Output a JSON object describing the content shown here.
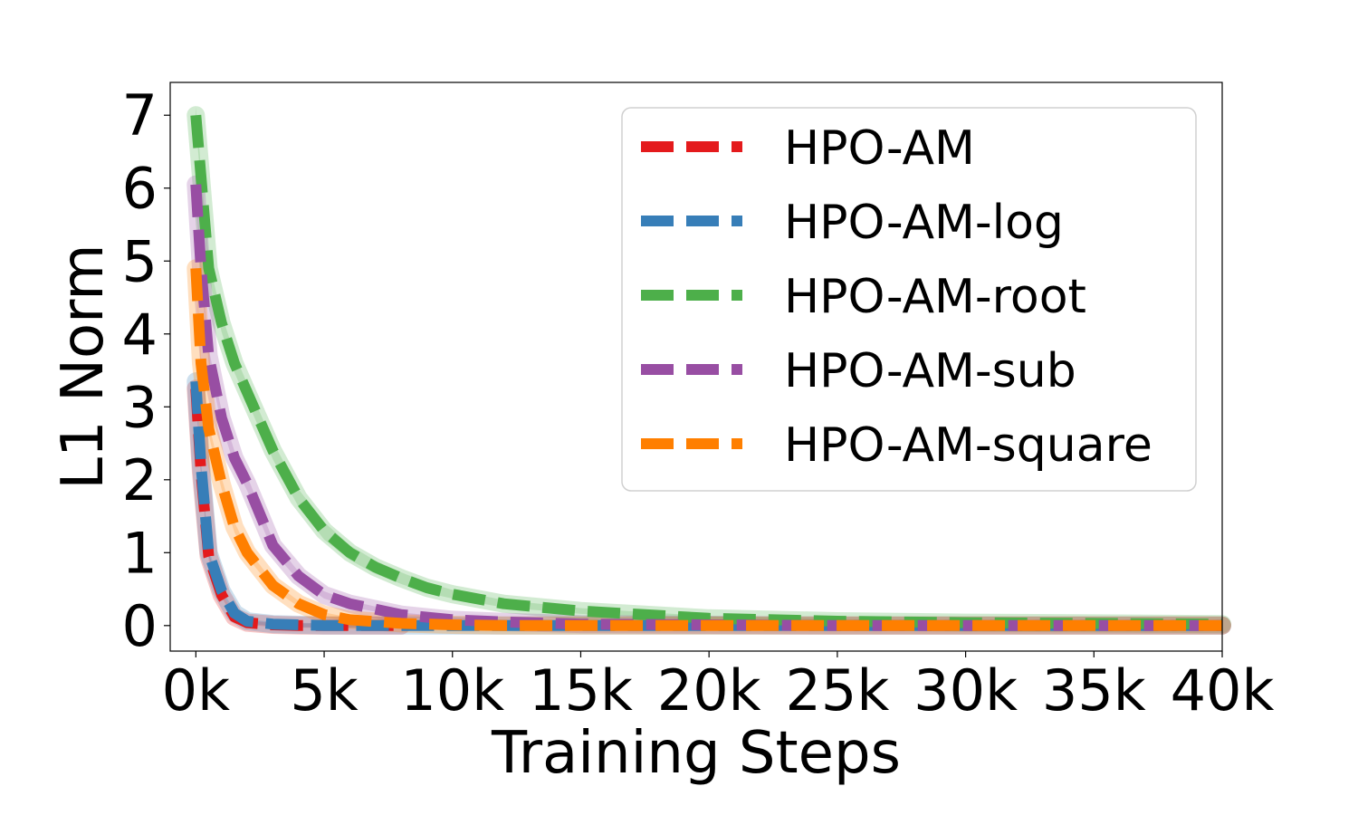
{
  "chart_data": {
    "type": "line",
    "title": "",
    "xlabel": "Training Steps",
    "ylabel": "L1 Norm",
    "xlim": [
      -1000,
      40000
    ],
    "ylim": [
      -0.35,
      7.45
    ],
    "grid": false,
    "legend_position": "top-right",
    "x_ticks": [
      {
        "value": 0,
        "label": "0k"
      },
      {
        "value": 5000,
        "label": "5k"
      },
      {
        "value": 10000,
        "label": "10k"
      },
      {
        "value": 15000,
        "label": "15k"
      },
      {
        "value": 20000,
        "label": "20k"
      },
      {
        "value": 25000,
        "label": "25k"
      },
      {
        "value": 30000,
        "label": "30k"
      },
      {
        "value": 35000,
        "label": "35k"
      },
      {
        "value": 40000,
        "label": "40k"
      }
    ],
    "y_ticks": [
      {
        "value": 0,
        "label": "0"
      },
      {
        "value": 1,
        "label": "1"
      },
      {
        "value": 2,
        "label": "2"
      },
      {
        "value": 3,
        "label": "3"
      },
      {
        "value": 4,
        "label": "4"
      },
      {
        "value": 5,
        "label": "5"
      },
      {
        "value": 6,
        "label": "6"
      },
      {
        "value": 7,
        "label": "7"
      }
    ],
    "series": [
      {
        "name": "HPO-AM",
        "color": "#e41a1c",
        "x": [
          0,
          200,
          500,
          1000,
          1500,
          2000,
          3000,
          4000,
          6000,
          8000
        ],
        "y": [
          3.25,
          2.1,
          0.95,
          0.42,
          0.12,
          0.04,
          0.01,
          0.0,
          0.0,
          0.0
        ],
        "band": [
          0.08,
          0.06,
          0.05,
          0.03,
          0.02,
          0.01,
          0.0,
          0.0,
          0.0,
          0.0
        ]
      },
      {
        "name": "HPO-AM-log",
        "color": "#377eb8",
        "x": [
          0,
          200,
          500,
          1000,
          1500,
          2000,
          3000,
          4000,
          5000,
          6000,
          8000,
          10000,
          15000,
          20000,
          25000,
          30000,
          35000,
          40000
        ],
        "y": [
          3.35,
          2.2,
          1.0,
          0.48,
          0.17,
          0.06,
          0.02,
          0.01,
          0.0,
          0.0,
          0.0,
          0.0,
          0.0,
          0.0,
          0.0,
          0.0,
          0.0,
          0.0
        ],
        "band": [
          0.08,
          0.06,
          0.05,
          0.03,
          0.02,
          0.01,
          0.0,
          0.0,
          0.0,
          0.0,
          0.0,
          0.0,
          0.0,
          0.0,
          0.0,
          0.0,
          0.0,
          0.0
        ]
      },
      {
        "name": "HPO-AM-root",
        "color": "#4daf4a",
        "x": [
          0,
          500,
          1000,
          1500,
          2000,
          3000,
          4000,
          5000,
          6000,
          7000,
          8000,
          9000,
          10000,
          12000,
          15000,
          20000,
          25000,
          30000,
          35000,
          40000
        ],
        "y": [
          7.0,
          4.9,
          4.15,
          3.6,
          3.2,
          2.4,
          1.75,
          1.3,
          1.0,
          0.8,
          0.65,
          0.52,
          0.43,
          0.3,
          0.2,
          0.1,
          0.06,
          0.04,
          0.03,
          0.02
        ],
        "band": [
          0.12,
          0.1,
          0.12,
          0.13,
          0.12,
          0.12,
          0.12,
          0.12,
          0.1,
          0.09,
          0.08,
          0.07,
          0.06,
          0.05,
          0.04,
          0.03,
          0.02,
          0.01,
          0.01,
          0.01
        ]
      },
      {
        "name": "HPO-AM-sub",
        "color": "#984ea3",
        "x": [
          0,
          200,
          500,
          1000,
          1500,
          2000,
          3000,
          4000,
          5000,
          6000,
          8000,
          10000,
          12000,
          15000,
          20000,
          25000,
          30000,
          35000,
          40000
        ],
        "y": [
          6.05,
          4.9,
          3.7,
          2.85,
          2.3,
          1.95,
          1.1,
          0.68,
          0.42,
          0.3,
          0.15,
          0.08,
          0.05,
          0.02,
          0.01,
          0.0,
          0.0,
          0.0,
          0.0
        ],
        "band": [
          0.1,
          0.1,
          0.1,
          0.1,
          0.1,
          0.1,
          0.08,
          0.06,
          0.05,
          0.04,
          0.03,
          0.02,
          0.01,
          0.01,
          0.0,
          0.0,
          0.0,
          0.0,
          0.0
        ]
      },
      {
        "name": "HPO-AM-square",
        "color": "#ff7f00",
        "x": [
          0,
          200,
          500,
          1000,
          1500,
          2000,
          3000,
          4000,
          5000,
          6000,
          8000,
          10000,
          12000,
          15000,
          20000,
          25000,
          30000,
          35000,
          40000
        ],
        "y": [
          4.9,
          3.6,
          2.7,
          1.95,
          1.35,
          1.0,
          0.55,
          0.3,
          0.15,
          0.08,
          0.03,
          0.01,
          0.0,
          0.0,
          0.0,
          0.0,
          0.0,
          0.0,
          0.0
        ],
        "band": [
          0.08,
          0.08,
          0.08,
          0.08,
          0.07,
          0.06,
          0.05,
          0.04,
          0.03,
          0.02,
          0.01,
          0.0,
          0.0,
          0.0,
          0.0,
          0.0,
          0.0,
          0.0,
          0.0
        ]
      }
    ]
  }
}
